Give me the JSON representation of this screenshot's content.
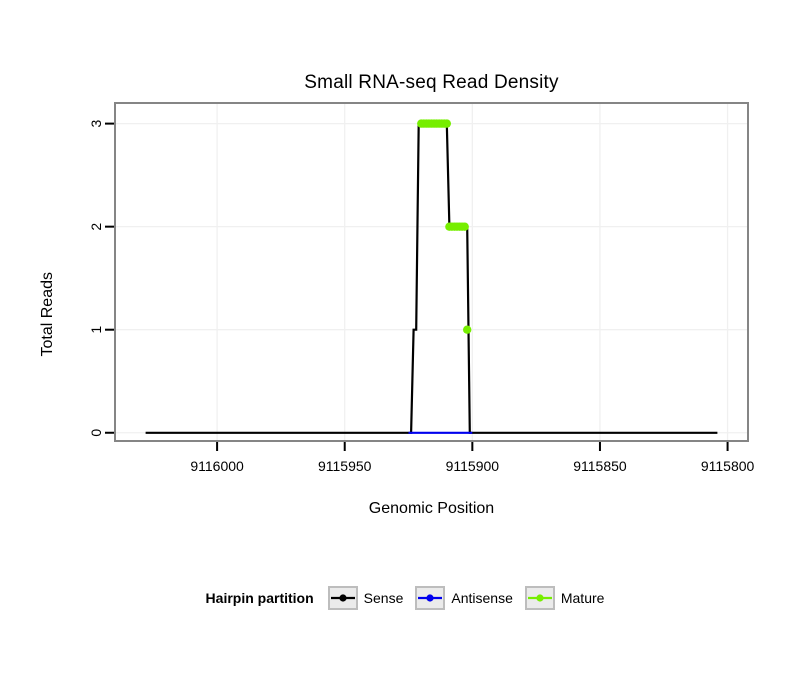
{
  "figure": {
    "title": "Small RNA-seq Read Density",
    "x_axis_label": "Genomic Position",
    "y_axis_label": "Total Reads"
  },
  "legend": {
    "title": "Hairpin partition",
    "entries": [
      {
        "label": "Sense",
        "color": "#000000"
      },
      {
        "label": "Antisense",
        "color": "#0000ee"
      },
      {
        "label": "Mature",
        "color": "#76ee00"
      }
    ]
  },
  "theme": {
    "background": "#ffffff",
    "frame_color": "#858585",
    "grid_color": "#f0f0f0",
    "tick_color": "#000000",
    "legend_box_fill": "#ebebeb",
    "legend_box_border": "#bdbdbd"
  },
  "chart_data": {
    "type": "line",
    "title": "Small RNA-seq Read Density",
    "xlabel": "Genomic Position",
    "ylabel": "Total Reads",
    "x_axis_reversed": true,
    "xlim": [
      9116040,
      9115792
    ],
    "ylim": [
      0,
      3
    ],
    "ylim_display": [
      -0.08,
      3.2
    ],
    "x_ticks": [
      9116000,
      9115950,
      9115900,
      9115850,
      9115800
    ],
    "y_ticks": [
      0,
      1,
      2,
      3
    ],
    "grid": true,
    "legend_position": "bottom",
    "series": [
      {
        "name": "Sense",
        "type": "line",
        "color": "#000000",
        "points": [
          [
            9116028,
            0
          ],
          [
            9115924,
            0
          ],
          [
            9115923,
            1
          ],
          [
            9115922,
            1
          ],
          [
            9115921,
            3
          ],
          [
            9115910,
            3
          ],
          [
            9115909,
            2
          ],
          [
            9115902,
            2
          ],
          [
            9115901,
            0
          ],
          [
            9115804,
            0
          ]
        ]
      },
      {
        "name": "Antisense",
        "type": "line",
        "color": "#0000ee",
        "points": [
          [
            9115925,
            0
          ],
          [
            9115900,
            0
          ]
        ]
      },
      {
        "name": "Mature",
        "type": "points",
        "color": "#76ee00",
        "points": [
          [
            9115920,
            3
          ],
          [
            9115919,
            3
          ],
          [
            9115918,
            3
          ],
          [
            9115917,
            3
          ],
          [
            9115916,
            3
          ],
          [
            9115915,
            3
          ],
          [
            9115914,
            3
          ],
          [
            9115913,
            3
          ],
          [
            9115912,
            3
          ],
          [
            9115911,
            3
          ],
          [
            9115910,
            3
          ],
          [
            9115909,
            2
          ],
          [
            9115908,
            2
          ],
          [
            9115907,
            2
          ],
          [
            9115906,
            2
          ],
          [
            9115905,
            2
          ],
          [
            9115904,
            2
          ],
          [
            9115903,
            2
          ],
          [
            9115902,
            1
          ]
        ]
      }
    ]
  }
}
